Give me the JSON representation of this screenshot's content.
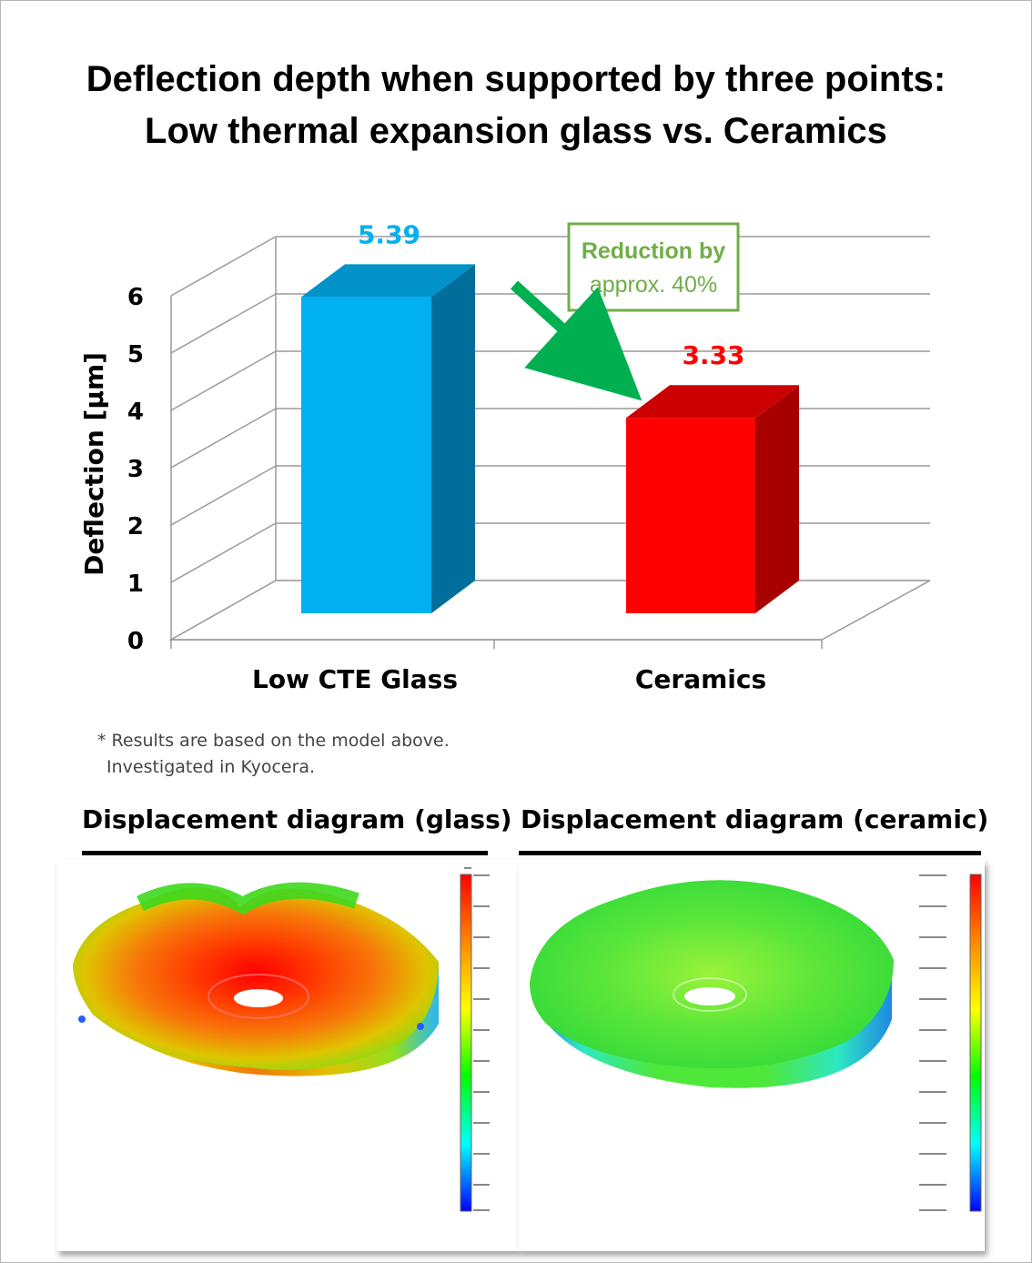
{
  "title": {
    "line1": "Deflection depth when supported by three points:",
    "line2": "Low thermal expansion glass vs. Ceramics"
  },
  "chart_data": {
    "type": "bar",
    "categories": [
      "Low CTE Glass",
      "Ceramics"
    ],
    "values": [
      5.39,
      3.33
    ],
    "value_labels": [
      "5.39",
      "3.33"
    ],
    "ylabel": "Deflection [µm]",
    "ylim": [
      0,
      6
    ],
    "yticks": [
      "0",
      "1",
      "2",
      "3",
      "4",
      "5",
      "6"
    ],
    "grid": true,
    "colors": [
      "#00b0f0",
      "#ff0000"
    ],
    "label_colors": [
      "#00b0f0",
      "#ff0000"
    ],
    "annotation": {
      "line1": "Reduction by",
      "line2": "approx. 40%",
      "color": "#70ad47",
      "arrow_color": "#00b050"
    }
  },
  "note": {
    "line1": "* Results are based on the model above.",
    "line2": "Investigated in Kyocera."
  },
  "panels": [
    {
      "title": "Displacement diagram (glass)",
      "icon": "displacement-contour-glass"
    },
    {
      "title": "Displacement diagram (ceramic)",
      "icon": "displacement-contour-ceramic"
    }
  ]
}
